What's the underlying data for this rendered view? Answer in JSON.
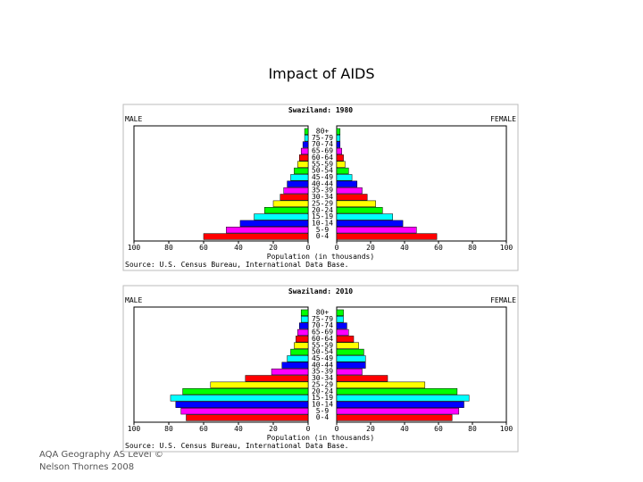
{
  "title": "Impact of AIDS",
  "footer": [
    "AQA Geography AS Level ©",
    "Nelson Thornes 2008"
  ],
  "chart_data": [
    {
      "type": "pyramid",
      "title": "Swaziland: 1980",
      "categories": [
        "80+",
        "75-79",
        "70-74",
        "65-69",
        "60-64",
        "55-59",
        "50-54",
        "45-49",
        "40-44",
        "35-39",
        "30-34",
        "25-29",
        "20-24",
        "15-19",
        "10-14",
        "5-9",
        "0-4"
      ],
      "colors": [
        "#00ff00",
        "#00ffff",
        "#0000ff",
        "#ff00ff",
        "#ff0000",
        "#ffff00",
        "#00ff00",
        "#00ffff",
        "#0000ff",
        "#ff00ff",
        "#ff0000",
        "#ffff00",
        "#00ff00",
        "#00ffff",
        "#0000ff",
        "#ff00ff",
        "#ff0000"
      ],
      "series": [
        {
          "name": "MALE",
          "values": [
            2,
            2,
            3,
            4,
            5,
            6,
            8,
            10,
            12,
            14,
            16,
            20,
            25,
            31,
            39,
            47,
            60
          ]
        },
        {
          "name": "FEMALE",
          "values": [
            2,
            2,
            2,
            3,
            4,
            5,
            7,
            9,
            12,
            15,
            18,
            23,
            27,
            33,
            39,
            47,
            59
          ]
        }
      ],
      "xlim": [
        0,
        100
      ],
      "xticks": [
        0,
        20,
        40,
        60,
        80,
        100
      ],
      "xlabel": "Population (in thousands)",
      "source": "Source: U.S. Census Bureau, International Data Base."
    },
    {
      "type": "pyramid",
      "title": "Swaziland: 2010",
      "categories": [
        "80+",
        "75-79",
        "70-74",
        "65-69",
        "60-64",
        "55-59",
        "50-54",
        "45-49",
        "40-44",
        "35-39",
        "30-34",
        "25-29",
        "20-24",
        "15-19",
        "10-14",
        "5-9",
        "0-4"
      ],
      "colors": [
        "#00ff00",
        "#00ffff",
        "#0000ff",
        "#ff00ff",
        "#ff0000",
        "#ffff00",
        "#00ff00",
        "#00ffff",
        "#0000ff",
        "#ff00ff",
        "#ff0000",
        "#ffff00",
        "#00ff00",
        "#00ffff",
        "#0000ff",
        "#ff00ff",
        "#ff0000"
      ],
      "series": [
        {
          "name": "MALE",
          "values": [
            4,
            4,
            5,
            6,
            7,
            8,
            10,
            12,
            15,
            21,
            36,
            56,
            72,
            79,
            76,
            73,
            70
          ]
        },
        {
          "name": "FEMALE",
          "values": [
            4,
            4,
            6,
            7,
            10,
            13,
            16,
            17,
            17,
            15,
            30,
            52,
            71,
            78,
            75,
            72,
            68
          ]
        }
      ],
      "xlim": [
        0,
        100
      ],
      "xticks": [
        0,
        20,
        40,
        60,
        80,
        100
      ],
      "xlabel": "Population (in thousands)",
      "source": "Source: U.S. Census Bureau, International Data Base."
    }
  ]
}
